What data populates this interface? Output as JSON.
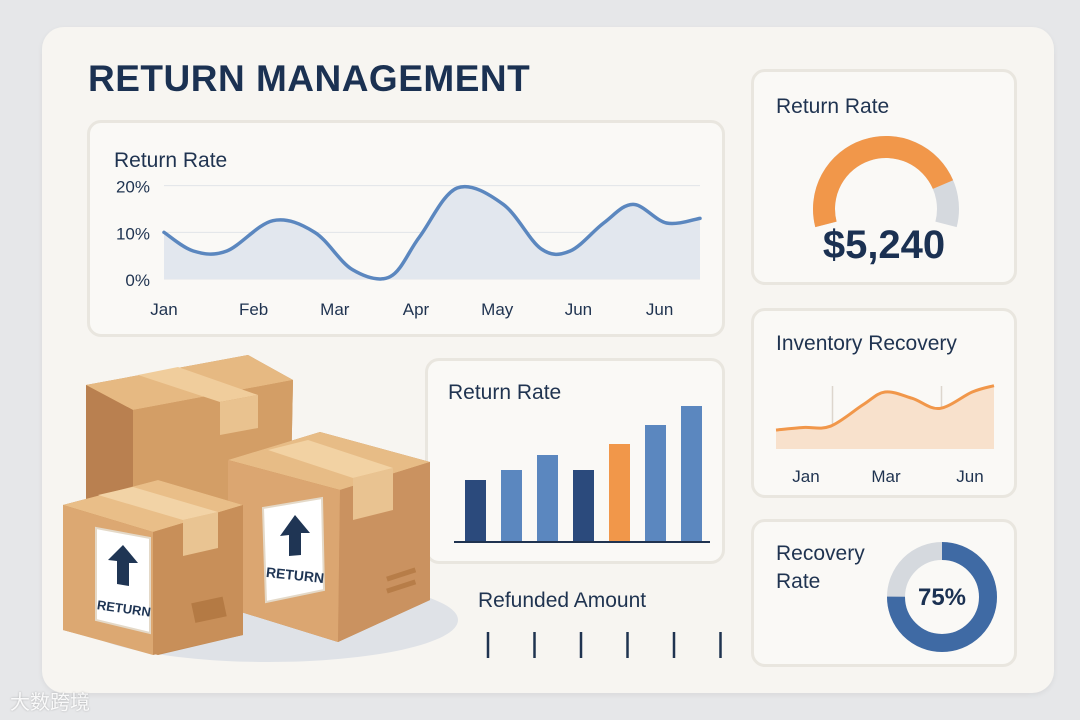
{
  "page": {
    "title": "RETURN MANAGEMENT",
    "watermark": "大数跨境"
  },
  "colors": {
    "navy": "#2b4a7c",
    "blue": "#5b87bf",
    "orange": "#f1974a",
    "gray": "#d5d9de",
    "area": "#e2e7ee",
    "peach": "#f8e1cc"
  },
  "return_rate_kpi": {
    "title": "Return Rate",
    "value": "$5,240",
    "gauge_fraction": 0.82
  },
  "inventory_recovery": {
    "title": "Inventory Recovery"
  },
  "recovery_rate": {
    "title_line1": "Recovery",
    "title_line2": "Rate",
    "value": "75%",
    "fraction": 0.75
  },
  "refunded_amount": {
    "title": "Refunded Amount",
    "tick_count": 6
  },
  "boxes": {
    "label_left": "RETURN",
    "label_right": "RETURN"
  },
  "chart_data": [
    {
      "type": "line",
      "title": "Return Rate",
      "categories": [
        "Jan",
        "Feb",
        "Mar",
        "Apr",
        "May",
        "Jun",
        "Jun"
      ],
      "x": [
        0,
        0.35,
        0.75,
        1.3,
        1.8,
        2.25,
        2.7,
        3.05,
        3.5,
        4.05,
        4.5,
        4.85,
        5.25,
        5.6,
        6.0,
        6.4
      ],
      "values": [
        10,
        6,
        6,
        12.5,
        10,
        2,
        0.5,
        9,
        19.5,
        16,
        6.5,
        6,
        12,
        16,
        12,
        13
      ],
      "yticks": [
        "0%",
        "10%",
        "20%"
      ],
      "ylim": [
        0,
        24
      ],
      "grid": true
    },
    {
      "type": "bar",
      "title": "Return Rate",
      "values": [
        61,
        71,
        86,
        71,
        97,
        116,
        135
      ],
      "colors": [
        "navy",
        "blue",
        "blue",
        "navy",
        "orange",
        "blue",
        "blue"
      ],
      "ylim": [
        0,
        140
      ]
    },
    {
      "type": "area",
      "title": "Inventory Recovery",
      "categories": [
        "Jan",
        "Mar",
        "Jun"
      ],
      "x": [
        0,
        0.25,
        0.5,
        0.8,
        1.0,
        1.25,
        1.5,
        1.8,
        2.0
      ],
      "values": [
        15,
        17,
        18,
        35,
        45,
        40,
        32,
        45,
        50
      ],
      "ylim": [
        0,
        60
      ],
      "grid": true
    }
  ]
}
